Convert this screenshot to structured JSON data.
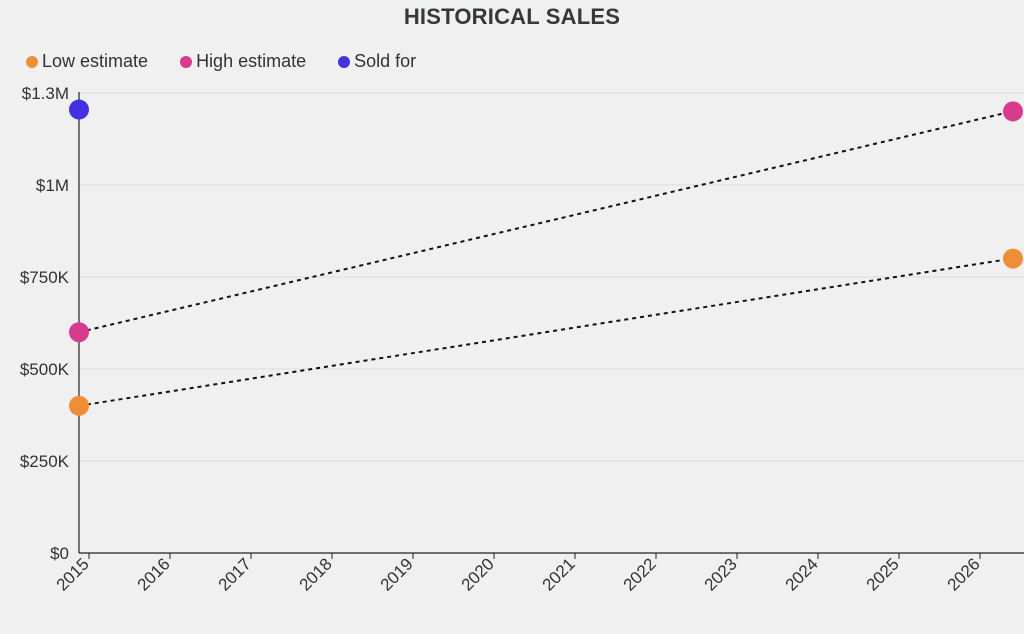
{
  "chart_data": {
    "type": "line",
    "title": "HISTORICAL SALES",
    "xlabel": "",
    "ylabel": "",
    "x_ticks": [
      "2015",
      "2016",
      "2017",
      "2018",
      "2019",
      "2020",
      "2021",
      "2022",
      "2023",
      "2024",
      "2025",
      "2026"
    ],
    "y_ticks": [
      {
        "value": 0,
        "label": "$0"
      },
      {
        "value": 250000,
        "label": "$250K"
      },
      {
        "value": 500000,
        "label": "$500K"
      },
      {
        "value": 750000,
        "label": "$750K"
      },
      {
        "value": 1000000,
        "label": "$1M"
      },
      {
        "value": 1250000,
        "label": "$1.3M"
      }
    ],
    "xlim": [
      2015,
      2026.4
    ],
    "ylim": [
      0,
      1250000
    ],
    "grid": true,
    "legend_position": "top-left",
    "series": [
      {
        "name": "Low estimate",
        "color": "#ee8f37",
        "line": "dashed",
        "points": [
          {
            "x": 2015,
            "y": 400000
          },
          {
            "x": 2026.4,
            "y": 800000
          }
        ]
      },
      {
        "name": "High estimate",
        "color": "#d63b8e",
        "line": "dashed",
        "points": [
          {
            "x": 2015,
            "y": 600000
          },
          {
            "x": 2026.4,
            "y": 1200000
          }
        ]
      },
      {
        "name": "Sold for",
        "color": "#4530e0",
        "line": "none",
        "points": [
          {
            "x": 2015,
            "y": 1205000
          }
        ]
      }
    ]
  }
}
